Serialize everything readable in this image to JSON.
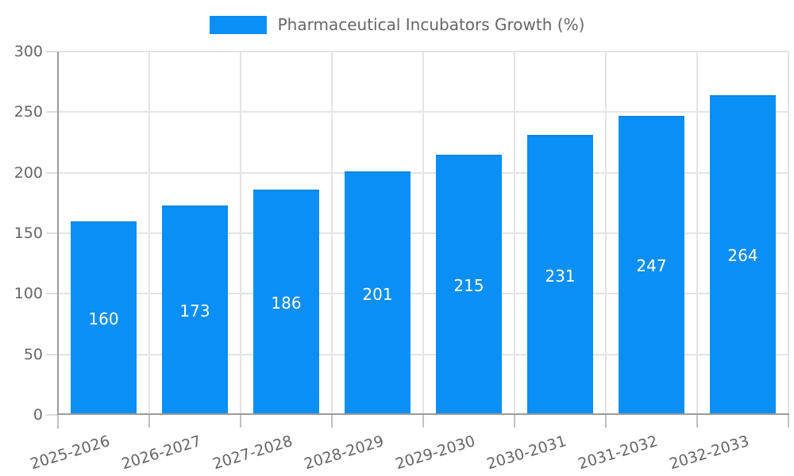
{
  "chart_data": {
    "type": "bar",
    "title": "Pharmaceutical Incubators Growth (%)",
    "categories": [
      "2025-2026",
      "2026-2027",
      "2027-2028",
      "2028-2029",
      "2029-2030",
      "2030-2031",
      "2031-2032",
      "2032-2033"
    ],
    "series": [
      {
        "name": "Pharmaceutical Incubators Growth (%)",
        "values": [
          160,
          173,
          186,
          201,
          215,
          231,
          247,
          264
        ]
      }
    ],
    "xlabel": "",
    "ylabel": "",
    "ylim": [
      0,
      300
    ],
    "yticks": [
      0,
      50,
      100,
      150,
      200,
      250,
      300
    ],
    "grid": true,
    "legend_position": "top-center",
    "value_labels_inside_bars": true,
    "x_tick_rotation_deg": -17,
    "colors": {
      "bar": "#0a8ff5",
      "bar_top_edge": "#0e86e0",
      "axis": "#9b9b9b",
      "gridline": "#e4e4e4",
      "y_tick": "#dddddd",
      "x_tick": "#c2c2c2",
      "tick_label": "#666666",
      "legend_label": "#666666",
      "value_label": "#ffffff",
      "background": "#ffffff"
    }
  }
}
